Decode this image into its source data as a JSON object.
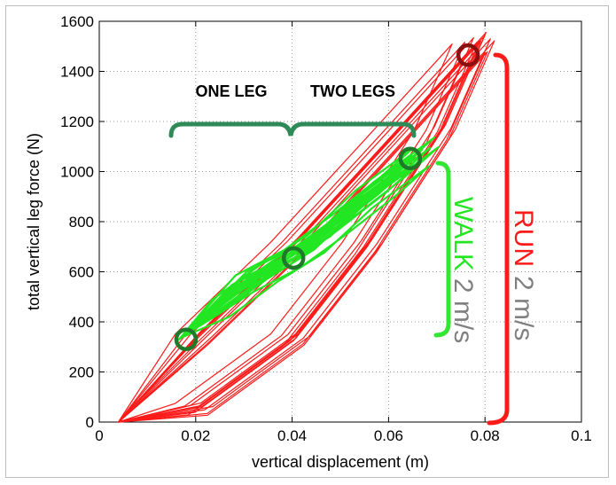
{
  "chart_data": {
    "type": "line",
    "xlabel": "vertical displacement (m)",
    "ylabel": "total vertical leg force (N)",
    "xlim": [
      0,
      0.1
    ],
    "ylim": [
      0,
      1600
    ],
    "x_ticks": [
      "0",
      "0.02",
      "0.04",
      "0.06",
      "0.08",
      "0.1"
    ],
    "y_ticks": [
      "0",
      "200",
      "400",
      "600",
      "800",
      "1000",
      "1200",
      "1400",
      "1600"
    ],
    "grid": true,
    "series": [
      {
        "name": "RUN 2 m/s",
        "color": "#ff1a1a",
        "loops": 14,
        "loading_path": [
          [
            0.004,
            0
          ],
          [
            0.02,
            330
          ],
          [
            0.04,
            700
          ],
          [
            0.06,
            1120
          ],
          [
            0.078,
            1500
          ]
        ],
        "unloading_path": [
          [
            0.083,
            1500
          ],
          [
            0.07,
            1150
          ],
          [
            0.055,
            700
          ],
          [
            0.04,
            330
          ],
          [
            0.02,
            50
          ],
          [
            0.004,
            0
          ]
        ]
      },
      {
        "name": "WALK 2 m/s",
        "color": "#22e622",
        "loops": 10,
        "loading_path": [
          [
            0.017,
            340
          ],
          [
            0.03,
            560
          ],
          [
            0.04,
            660
          ],
          [
            0.05,
            800
          ],
          [
            0.06,
            950
          ],
          [
            0.067,
            1070
          ]
        ],
        "unloading_path": [
          [
            0.067,
            1070
          ],
          [
            0.055,
            900
          ],
          [
            0.045,
            720
          ],
          [
            0.035,
            600
          ],
          [
            0.025,
            460
          ],
          [
            0.017,
            340
          ]
        ]
      }
    ],
    "markers": [
      {
        "x": 0.018,
        "y": 330,
        "color": "#1e7a2a"
      },
      {
        "x": 0.0403,
        "y": 655,
        "color": "#1e7a2a"
      },
      {
        "x": 0.0645,
        "y": 1052,
        "color": "#1e7a2a"
      },
      {
        "x": 0.0765,
        "y": 1465,
        "color": "#8b0f0f"
      }
    ],
    "annotations": {
      "one_leg": "ONE LEG",
      "two_legs": "TWO LEGS",
      "walk_word": "WALK",
      "walk_speed": "2 m/s",
      "run_word": "RUN",
      "run_speed": "2 m/s"
    },
    "colors": {
      "run": "#ff1a1a",
      "walk": "#22e622",
      "brace_dark_green": "#2e8b57",
      "speed_gray": "#808080",
      "marker_green": "#1e7a2a",
      "marker_red": "#8b0f0f"
    }
  }
}
